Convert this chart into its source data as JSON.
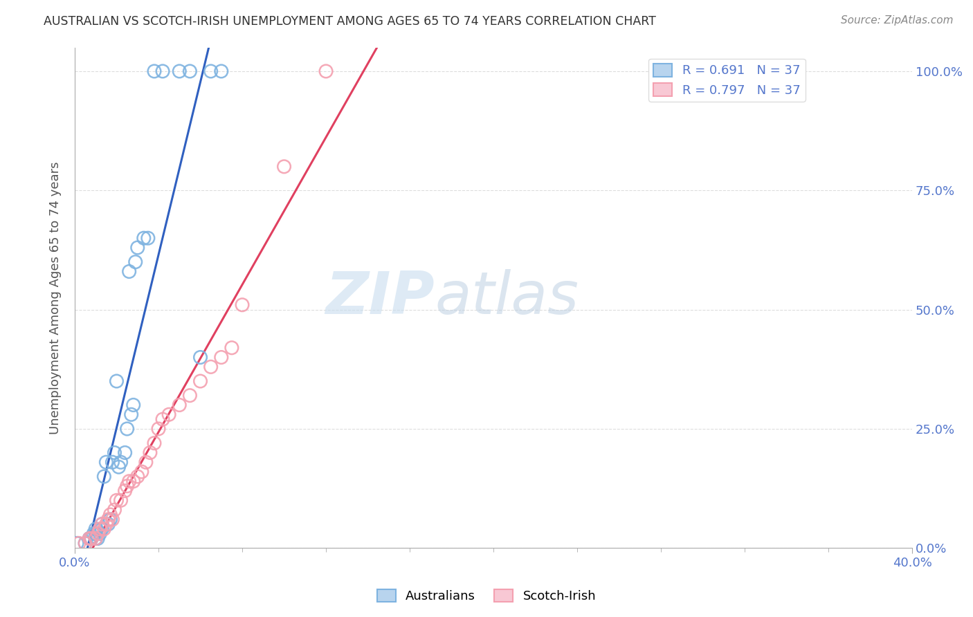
{
  "title": "AUSTRALIAN VS SCOTCH-IRISH UNEMPLOYMENT AMONG AGES 65 TO 74 YEARS CORRELATION CHART",
  "source": "Source: ZipAtlas.com",
  "ylabel": "Unemployment Among Ages 65 to 74 years",
  "xmin": 0.0,
  "xmax": 0.4,
  "ymin": 0.0,
  "ymax": 1.05,
  "xtick_left_label": "0.0%",
  "xtick_right_label": "40.0%",
  "yticks_right": [
    0.0,
    0.25,
    0.5,
    0.75,
    1.0
  ],
  "ytick_labels_right": [
    "0.0%",
    "25.0%",
    "50.0%",
    "75.0%",
    "100.0%"
  ],
  "legend_r_australian": "R = 0.691",
  "legend_n_australian": "N = 37",
  "legend_r_scotchirish": "R = 0.797",
  "legend_n_scotchirish": "N = 37",
  "legend_label_australian": "Australians",
  "legend_label_scotchirish": "Scotch-Irish",
  "australian_color": "#7EB3E0",
  "scotchirish_color": "#F4A0B0",
  "regression_australian_color": "#3060C0",
  "regression_scotchirish_color": "#E04060",
  "watermark_zip": "ZIP",
  "watermark_atlas": "atlas",
  "background_color": "#FFFFFF",
  "grid_color": "#DDDDDD",
  "title_color": "#333333",
  "axis_label_color": "#555555",
  "tick_label_color": "#5577CC",
  "num_xticks_minor": 10,
  "australian_x": [
    0.001,
    0.005,
    0.007,
    0.008,
    0.009,
    0.01,
    0.01,
    0.01,
    0.011,
    0.012,
    0.013,
    0.013,
    0.014,
    0.015,
    0.016,
    0.017,
    0.018,
    0.019,
    0.02,
    0.021,
    0.022,
    0.024,
    0.025,
    0.026,
    0.027,
    0.028,
    0.029,
    0.03,
    0.033,
    0.035,
    0.038,
    0.042,
    0.05,
    0.055,
    0.06,
    0.065,
    0.07
  ],
  "australian_y": [
    0.01,
    0.01,
    0.02,
    0.02,
    0.03,
    0.02,
    0.03,
    0.04,
    0.02,
    0.03,
    0.04,
    0.05,
    0.15,
    0.18,
    0.05,
    0.06,
    0.18,
    0.2,
    0.35,
    0.17,
    0.18,
    0.2,
    0.25,
    0.58,
    0.28,
    0.3,
    0.6,
    0.63,
    0.65,
    0.65,
    1.0,
    1.0,
    1.0,
    1.0,
    0.4,
    1.0,
    1.0
  ],
  "scotchirish_x": [
    0.002,
    0.005,
    0.007,
    0.008,
    0.01,
    0.011,
    0.012,
    0.013,
    0.014,
    0.015,
    0.016,
    0.017,
    0.018,
    0.019,
    0.02,
    0.022,
    0.024,
    0.025,
    0.026,
    0.028,
    0.03,
    0.032,
    0.034,
    0.036,
    0.038,
    0.04,
    0.042,
    0.045,
    0.05,
    0.055,
    0.06,
    0.065,
    0.07,
    0.075,
    0.08,
    0.1,
    0.12
  ],
  "scotchirish_y": [
    0.01,
    0.01,
    0.02,
    0.02,
    0.02,
    0.03,
    0.04,
    0.05,
    0.04,
    0.05,
    0.06,
    0.07,
    0.06,
    0.08,
    0.1,
    0.1,
    0.12,
    0.13,
    0.14,
    0.14,
    0.15,
    0.16,
    0.18,
    0.2,
    0.22,
    0.25,
    0.27,
    0.28,
    0.3,
    0.32,
    0.35,
    0.38,
    0.4,
    0.42,
    0.51,
    0.8,
    1.0
  ]
}
